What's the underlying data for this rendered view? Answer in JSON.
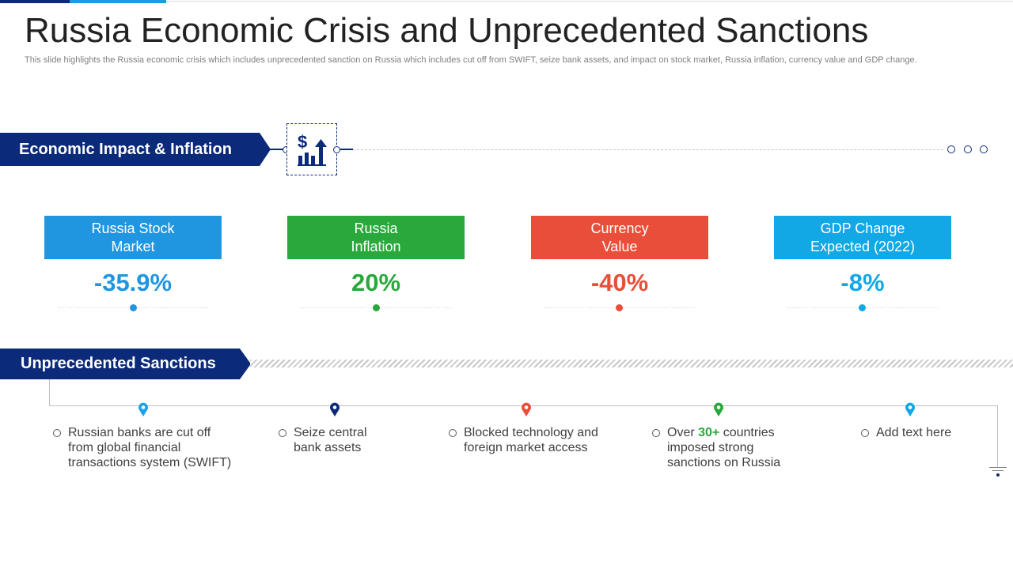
{
  "header": {
    "title": "Russia Economic Crisis and Unprecedented Sanctions",
    "subtitle": "This slide highlights the Russia economic crisis which includes unprecedented sanction on Russia which includes cut off from SWIFT,  seize bank assets, and impact on stock market, Russia inflation, currency value and GDP change."
  },
  "sections": {
    "economic": "Economic Impact & Inflation",
    "sanctions": "Unprecedented Sanctions"
  },
  "icons": {
    "economic": "dollar-growth-chart-icon"
  },
  "metrics": [
    {
      "label": "Russia Stock\nMarket",
      "value": "-35.9%",
      "color": "#2196e0"
    },
    {
      "label": "Russia\nInflation",
      "value": "20%",
      "color": "#2aa83c"
    },
    {
      "label": "Currency\nValue",
      "value": "-40%",
      "color": "#e94e3a"
    },
    {
      "label": "GDP Change\nExpected (2022)",
      "value": "-8%",
      "color": "#12a8e6"
    }
  ],
  "sanction_items": [
    {
      "text": "Russian banks are cut off\nfrom global financial\ntransactions system (SWIFT)",
      "pin_color": "#1ea1e6"
    },
    {
      "text": "Seize central\nbank assets",
      "pin_color": "#0b2a7a"
    },
    {
      "text": "Blocked technology  and\nforeign market access",
      "pin_color": "#e94e3a"
    },
    {
      "text_before": "Over ",
      "highlight": "30+",
      "text_after": " countries\nimposed strong\nsanctions on Russia",
      "pin_color": "#2aa83c"
    },
    {
      "text": "Add text here",
      "pin_color": "#12a8e6"
    }
  ],
  "colors": {
    "navy": "#0b2a7a",
    "accent": "#1e9be0"
  }
}
